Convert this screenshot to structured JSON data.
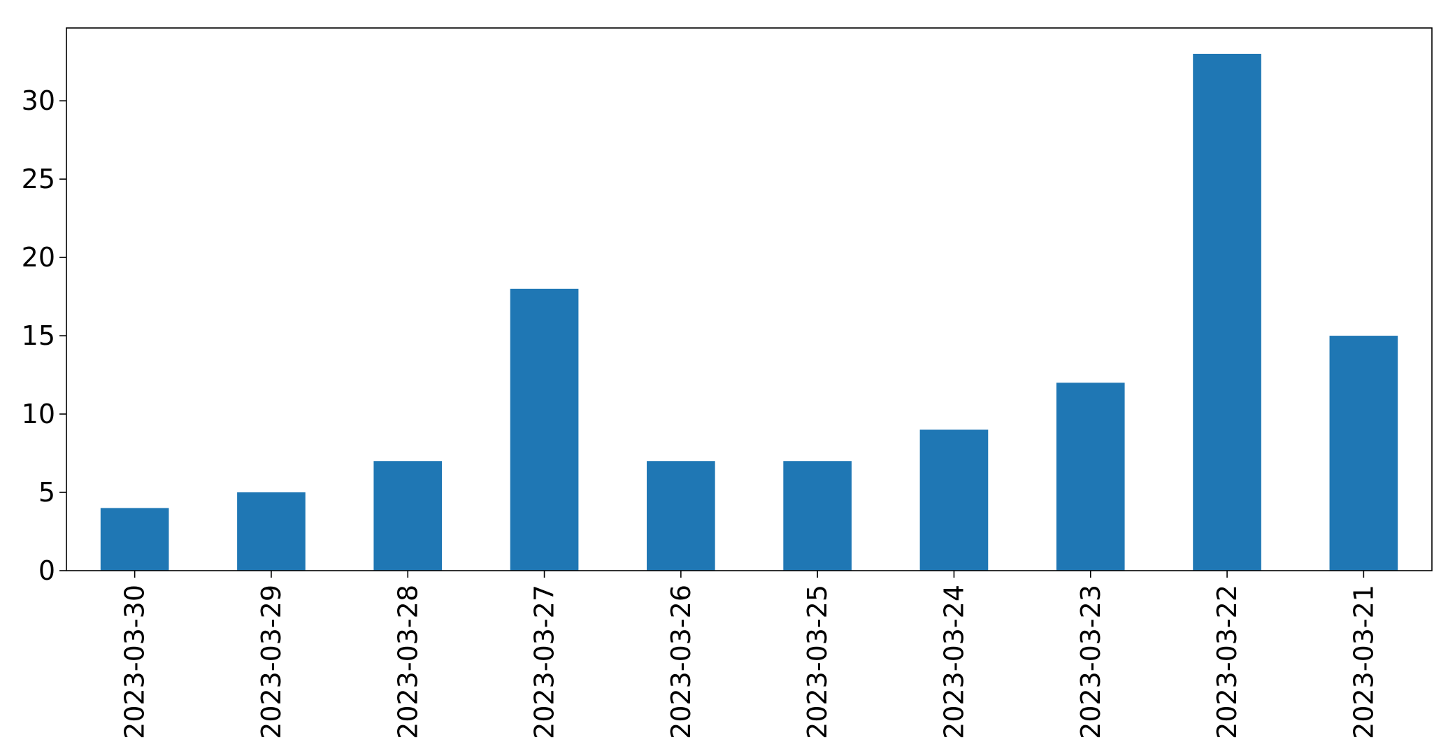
{
  "chart_data": {
    "type": "bar",
    "title": "",
    "xlabel": "",
    "ylabel": "",
    "categories": [
      "2023-03-30",
      "2023-03-29",
      "2023-03-28",
      "2023-03-27",
      "2023-03-26",
      "2023-03-25",
      "2023-03-24",
      "2023-03-23",
      "2023-03-22",
      "2023-03-21"
    ],
    "series": [
      {
        "values": [
          4,
          5,
          7,
          18,
          7,
          7,
          9,
          12,
          33,
          15
        ],
        "color": "#1f77b4"
      }
    ],
    "ylim": [
      0,
      34.65
    ],
    "yticks": [
      0,
      5,
      10,
      15,
      20,
      25,
      30
    ],
    "grid": false,
    "legend": "none",
    "x_tick_rotation": "vertical"
  }
}
